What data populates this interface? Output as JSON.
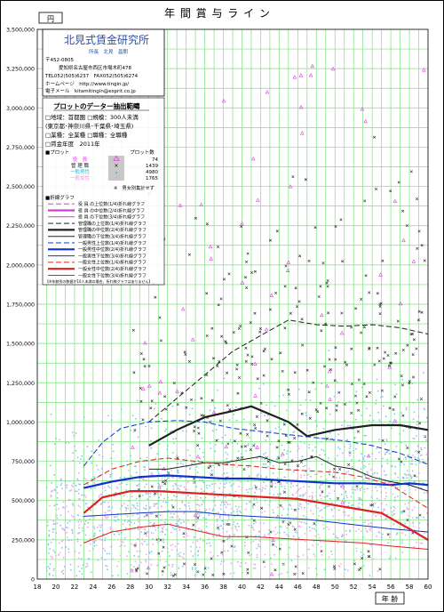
{
  "title": "年 間 賞 与 ラ イ ン",
  "yunit": "円",
  "xunit": "年 齢",
  "company": {
    "name": "北見式賃金研究所",
    "rep": "所長　北見　昌朗",
    "zip": "〒452-0805",
    "address": "愛知県名古屋市西区市場木町478",
    "tel": "TEL052(505)6237　FAX052(505)6274",
    "web": "ホームページ　http://www.tingin.jp/",
    "email": "電子メール　kitamitingin@esprit.co.jp"
  },
  "extract": {
    "header": "プロットのデーター抽出範疇",
    "lines": [
      "□地域：首都圏 □規模：300人未満",
      "(東京都･神奈川県･千葉県･埼玉県)",
      "□業種：全業種 □職種：全職種",
      "□賃金年度　2011年"
    ]
  },
  "plot_legend": {
    "title": "■プロット",
    "count_header": "プロット数",
    "items": [
      {
        "label": "役　員",
        "count": "74",
        "color": "#e040e0"
      },
      {
        "label": "管 理 職",
        "count": "1439",
        "color": "#202020"
      },
      {
        "label": "一般男性",
        "count": "4980",
        "color": "#30b8d8"
      },
      {
        "label": "一般女性",
        "count": "1765",
        "color": "#f090e0"
      }
    ],
    "note": "※　男女別集計せず"
  },
  "line_legend": {
    "title": "■折線グラフ",
    "items": [
      {
        "label": "役 員 の上位数(1/4)折れ線グラフ",
        "color": "#d040d0",
        "dash": "6,3",
        "width": 1
      },
      {
        "label": "役 員 の中位数(2/4)折れ線グラフ",
        "color": "#d040d0",
        "dash": "",
        "width": 2.2
      },
      {
        "label": "役 員 の下位数(3/4)折れ線グラフ",
        "color": "#d040d0",
        "dash": "",
        "width": 1
      },
      {
        "label": "管理職の上位数(1/4)折れ線グラフ",
        "color": "#202020",
        "dash": "6,3",
        "width": 1
      },
      {
        "label": "管理職の中位数(2/4)折れ線グラフ",
        "color": "#202020",
        "dash": "",
        "width": 2.2
      },
      {
        "label": "管理職の下位数(3/4)折れ線グラフ",
        "color": "#202020",
        "dash": "",
        "width": 1
      },
      {
        "label": "一般男性上位数(1/4)折れ線グラフ",
        "color": "#1030d0",
        "dash": "6,3",
        "width": 1
      },
      {
        "label": "一般男性中位数(2/4)折れ線グラフ",
        "color": "#1030d0",
        "dash": "",
        "width": 2.2
      },
      {
        "label": "一般男性下位数(3/4)折れ線グラフ",
        "color": "#1030d0",
        "dash": "",
        "width": 1
      },
      {
        "label": "一般女性上位数(1/4)折れ線グラフ",
        "color": "#e02020",
        "dash": "6,3",
        "width": 1
      },
      {
        "label": "一般女性中位数(2/4)折れ線グラフ",
        "color": "#e02020",
        "dash": "",
        "width": 2.2
      },
      {
        "label": "一般女性下位数(3/4)折れ線グラフ",
        "color": "#e02020",
        "dash": "",
        "width": 1
      }
    ],
    "footnote": "【※年齢別の数値が10人未満の場合、折れ線グラフはありません】"
  },
  "chart_data": {
    "type": "scatter",
    "title": "年 間 賞 与 ラ イ ン",
    "xlabel": "年 齢",
    "ylabel": "円",
    "xlim": [
      18,
      60
    ],
    "ylim": [
      0,
      3500000
    ],
    "xticks": [
      18,
      20,
      22,
      24,
      26,
      28,
      30,
      32,
      34,
      36,
      38,
      40,
      42,
      44,
      46,
      48,
      50,
      52,
      54,
      56,
      58,
      60
    ],
    "yticks": [
      0,
      250000,
      500000,
      750000,
      1000000,
      1250000,
      1500000,
      1750000,
      2000000,
      2250000,
      2500000,
      2750000,
      3000000,
      3250000,
      3500000
    ],
    "ytick_labels": [
      "0",
      "250,000",
      "500,000",
      "750,000",
      "1,000,000",
      "1,250,000",
      "1,500,000",
      "1,750,000",
      "2,000,000",
      "2,250,000",
      "2,500,000",
      "2,750,000",
      "3,000,000",
      "3,250,000",
      "3,500,000"
    ],
    "grid": true,
    "series": [
      {
        "name": "管理職の上位数(1/4)",
        "color": "#202020",
        "dash": "6,3",
        "width": 1,
        "x": [
          30,
          33,
          36,
          39,
          42,
          45,
          48,
          51,
          54,
          57,
          60
        ],
        "y": [
          1000000,
          1150000,
          1300000,
          1450000,
          1550000,
          1650000,
          1620000,
          1610000,
          1620000,
          1600000,
          1560000
        ]
      },
      {
        "name": "管理職の中位数(2/4)",
        "color": "#202020",
        "dash": "",
        "width": 2.2,
        "x": [
          30,
          33,
          36,
          39,
          41,
          43,
          45,
          47,
          50,
          54,
          57,
          60
        ],
        "y": [
          850000,
          950000,
          1030000,
          1070000,
          1100000,
          1050000,
          1000000,
          910000,
          950000,
          980000,
          980000,
          950000
        ]
      },
      {
        "name": "管理職の下位数(3/4)",
        "color": "#202020",
        "dash": "",
        "width": 1,
        "x": [
          30,
          32,
          34,
          36,
          38,
          40,
          42,
          44,
          46,
          48,
          50,
          52,
          54,
          56,
          58,
          60
        ],
        "y": [
          700000,
          700000,
          720000,
          740000,
          740000,
          760000,
          780000,
          740000,
          750000,
          780000,
          720000,
          700000,
          650000,
          620000,
          600000,
          560000
        ]
      },
      {
        "name": "一般男性上位数(1/4)",
        "color": "#1030d0",
        "dash": "6,3",
        "width": 1,
        "x": [
          23,
          25,
          27,
          30,
          33,
          36,
          39,
          42,
          45,
          48,
          51,
          54,
          57,
          60
        ],
        "y": [
          720000,
          870000,
          960000,
          1000000,
          1010000,
          1000000,
          960000,
          940000,
          920000,
          900000,
          880000,
          850000,
          800000,
          730000
        ]
      },
      {
        "name": "一般男性中位数(2/4)",
        "color": "#1030d0",
        "dash": "",
        "width": 2.2,
        "x": [
          23,
          26,
          29,
          32,
          35,
          38,
          41,
          44,
          47,
          50,
          53,
          56,
          58,
          60
        ],
        "y": [
          580000,
          620000,
          650000,
          660000,
          650000,
          640000,
          640000,
          630000,
          620000,
          610000,
          610000,
          600000,
          610000,
          600000
        ]
      },
      {
        "name": "一般男性下位数(3/4)",
        "color": "#1030d0",
        "dash": "",
        "width": 1,
        "x": [
          23,
          26,
          29,
          32,
          35,
          38,
          41,
          44,
          47,
          50,
          53,
          56,
          60
        ],
        "y": [
          400000,
          410000,
          420000,
          430000,
          430000,
          410000,
          400000,
          390000,
          380000,
          360000,
          340000,
          320000,
          300000
        ]
      },
      {
        "name": "一般女性上位数(1/4)",
        "color": "#e02020",
        "dash": "6,3",
        "width": 1,
        "x": [
          23,
          26,
          29,
          32,
          35,
          38,
          41,
          44,
          47,
          50,
          53,
          56,
          60
        ],
        "y": [
          600000,
          700000,
          750000,
          770000,
          750000,
          730000,
          720000,
          700000,
          690000,
          680000,
          650000,
          600000,
          450000
        ]
      },
      {
        "name": "一般女性中位数(2/4)",
        "color": "#e02020",
        "dash": "",
        "width": 2.2,
        "x": [
          23,
          25,
          28,
          31,
          34,
          37,
          40,
          43,
          46,
          49,
          52,
          55,
          58,
          60
        ],
        "y": [
          420000,
          520000,
          560000,
          560000,
          550000,
          540000,
          530000,
          520000,
          510000,
          480000,
          450000,
          420000,
          320000,
          250000
        ]
      },
      {
        "name": "一般女性下位数(3/4)",
        "color": "#e02020",
        "dash": "",
        "width": 1,
        "x": [
          23,
          26,
          29,
          32,
          35,
          38,
          41,
          44,
          47,
          50,
          53,
          56,
          60
        ],
        "y": [
          230000,
          300000,
          330000,
          350000,
          310000,
          270000,
          270000,
          260000,
          250000,
          240000,
          230000,
          210000,
          190000
        ]
      }
    ],
    "scatter_groups": [
      {
        "name": "役員",
        "marker": "triangle",
        "color": "#e040e0",
        "count": 74
      },
      {
        "name": "管理職",
        "marker": "x",
        "color": "#202020",
        "count": 1439
      },
      {
        "name": "一般男性",
        "marker": "dot",
        "color": "#80c8e8",
        "count": 4980
      },
      {
        "name": "一般女性",
        "marker": "dot",
        "color": "#f4a8e8",
        "count": 1765
      }
    ]
  }
}
